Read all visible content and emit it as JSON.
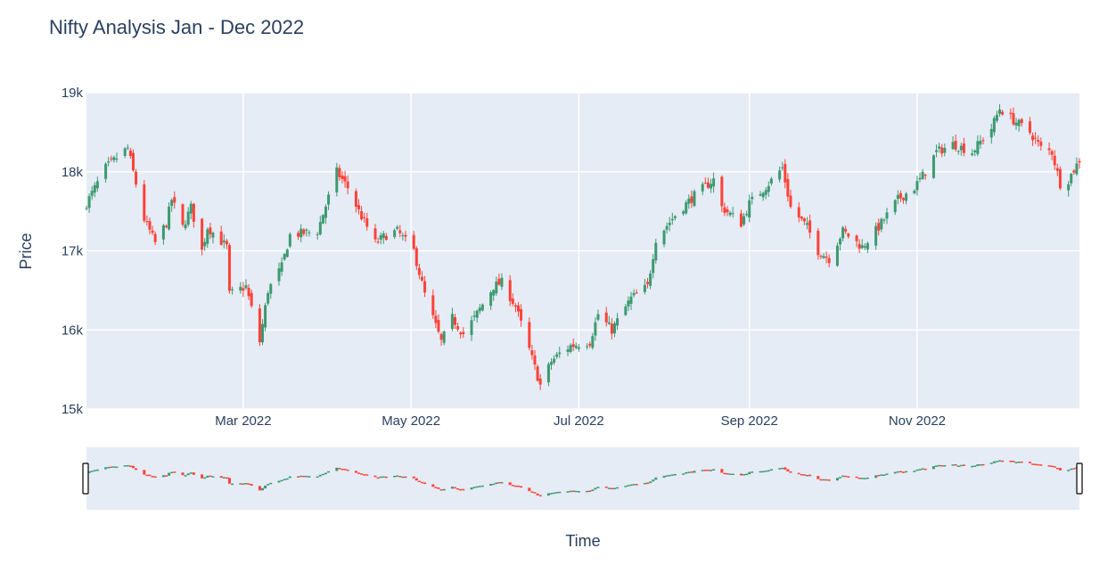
{
  "chart_data": {
    "type": "candlestick",
    "title": "Nifty Analysis Jan - Dec 2022",
    "xlabel": "Time",
    "ylabel": "Price",
    "x_range": [
      "2022-01-03",
      "2022-12-30"
    ],
    "ylim": [
      15000,
      19000
    ],
    "y_ticks": [
      {
        "value": 15000,
        "label": "15k"
      },
      {
        "value": 16000,
        "label": "16k"
      },
      {
        "value": 17000,
        "label": "17k"
      },
      {
        "value": 18000,
        "label": "18k"
      },
      {
        "value": 19000,
        "label": "19k"
      }
    ],
    "x_ticks": [
      {
        "date": "2022-03-01",
        "label": "Mar 2022"
      },
      {
        "date": "2022-05-01",
        "label": "May 2022"
      },
      {
        "date": "2022-07-01",
        "label": "Jul 2022"
      },
      {
        "date": "2022-09-01",
        "label": "Sep 2022"
      },
      {
        "date": "2022-11-01",
        "label": "Nov 2022"
      }
    ],
    "grid": true,
    "range_slider": true,
    "increasing_color": "#3d9970",
    "decreasing_color": "#ff4136",
    "keyframes": [
      [
        "2022-01-03",
        17600
      ],
      [
        "2022-01-10",
        18050
      ],
      [
        "2022-01-18",
        18300
      ],
      [
        "2022-01-24",
        17400
      ],
      [
        "2022-01-28",
        17100
      ],
      [
        "2022-02-01",
        17350
      ],
      [
        "2022-02-03",
        17650
      ],
      [
        "2022-02-07",
        17300
      ],
      [
        "2022-02-10",
        17550
      ],
      [
        "2022-02-14",
        17000
      ],
      [
        "2022-02-16",
        17300
      ],
      [
        "2022-02-23",
        17050
      ],
      [
        "2022-02-24",
        16450
      ],
      [
        "2022-03-02",
        16550
      ],
      [
        "2022-03-07",
        15850
      ],
      [
        "2022-03-10",
        16500
      ],
      [
        "2022-03-15",
        16800
      ],
      [
        "2022-03-18",
        17200
      ],
      [
        "2022-03-28",
        17250
      ],
      [
        "2022-04-04",
        18000
      ],
      [
        "2022-04-08",
        17800
      ],
      [
        "2022-04-12",
        17500
      ],
      [
        "2022-04-18",
        17100
      ],
      [
        "2022-04-22",
        17200
      ],
      [
        "2022-04-26",
        17250
      ],
      [
        "2022-05-02",
        17000
      ],
      [
        "2022-05-06",
        16450
      ],
      [
        "2022-05-12",
        15850
      ],
      [
        "2022-05-16",
        16150
      ],
      [
        "2022-05-20",
        15950
      ],
      [
        "2022-05-24",
        16150
      ],
      [
        "2022-05-31",
        16550
      ],
      [
        "2022-06-03",
        16600
      ],
      [
        "2022-06-08",
        16300
      ],
      [
        "2022-06-13",
        15750
      ],
      [
        "2022-06-17",
        15300
      ],
      [
        "2022-06-21",
        15600
      ],
      [
        "2022-06-24",
        15700
      ],
      [
        "2022-06-28",
        15800
      ],
      [
        "2022-07-05",
        15850
      ],
      [
        "2022-07-08",
        16200
      ],
      [
        "2022-07-13",
        16000
      ],
      [
        "2022-07-20",
        16400
      ],
      [
        "2022-07-26",
        16550
      ],
      [
        "2022-07-29",
        17150
      ],
      [
        "2022-08-05",
        17450
      ],
      [
        "2022-08-12",
        17700
      ],
      [
        "2022-08-19",
        17900
      ],
      [
        "2022-08-22",
        17550
      ],
      [
        "2022-08-29",
        17350
      ],
      [
        "2022-09-01",
        17600
      ],
      [
        "2022-09-08",
        17850
      ],
      [
        "2022-09-13",
        18050
      ],
      [
        "2022-09-16",
        17550
      ],
      [
        "2022-09-22",
        17300
      ],
      [
        "2022-09-26",
        17000
      ],
      [
        "2022-09-30",
        16900
      ],
      [
        "2022-10-05",
        17250
      ],
      [
        "2022-10-12",
        17050
      ],
      [
        "2022-10-18",
        17300
      ],
      [
        "2022-10-25",
        17650
      ],
      [
        "2022-10-31",
        17800
      ],
      [
        "2022-11-04",
        18000
      ],
      [
        "2022-11-08",
        18250
      ],
      [
        "2022-11-14",
        18350
      ],
      [
        "2022-11-21",
        18250
      ],
      [
        "2022-11-28",
        18550
      ],
      [
        "2022-12-01",
        18800
      ],
      [
        "2022-12-06",
        18650
      ],
      [
        "2022-12-12",
        18500
      ],
      [
        "2022-12-16",
        18300
      ],
      [
        "2022-12-20",
        18250
      ],
      [
        "2022-12-23",
        17850
      ],
      [
        "2022-12-26",
        17900
      ],
      [
        "2022-12-30",
        18150
      ]
    ]
  }
}
